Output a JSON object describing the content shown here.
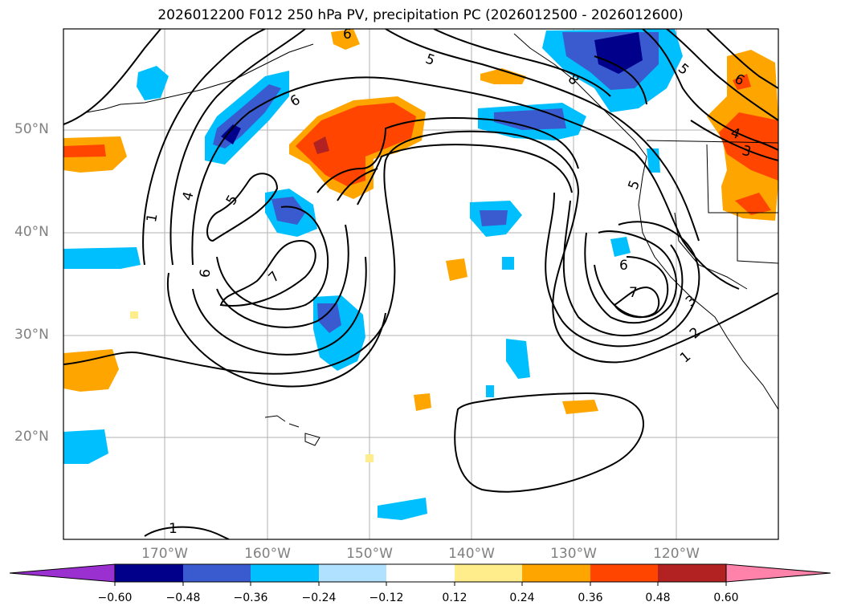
{
  "title": "2026012200 F012 250 hPa PV, precipitation PC (2026012500 - 2026012600)",
  "lat_labels": [
    "50°N",
    "40°N",
    "30°N",
    "20°N"
  ],
  "lon_labels": [
    "170°W",
    "160°W",
    "150°W",
    "140°W",
    "130°W",
    "120°W"
  ],
  "colorbar": {
    "ticks": [
      "−0.60",
      "−0.48",
      "−0.36",
      "−0.24",
      "−0.12",
      "0.12",
      "0.24",
      "0.36",
      "0.48",
      "0.60"
    ],
    "colors": [
      "#9b30d0",
      "#00008b",
      "#3a5bd0",
      "#00bfff",
      "#b0e2ff",
      "#ffffff",
      "#ffec8b",
      "#ffa500",
      "#ff4500",
      "#b22222",
      "#ff82ab"
    ]
  },
  "contour_labels": {
    "l1": "1",
    "l4": "4",
    "l5": "5",
    "l6": "6",
    "l6b": "6",
    "l7": "7",
    "l5top": "5",
    "l6top": "6",
    "l5ne": "5",
    "l6ne": "6",
    "l4ne": "4",
    "l3ne": "3",
    "l8ne": "8",
    "l5c": "5",
    "l6e": "6",
    "l7e": "7",
    "l3e": "3",
    "l2e": "2",
    "l1e": "1",
    "l1s": "1"
  }
}
